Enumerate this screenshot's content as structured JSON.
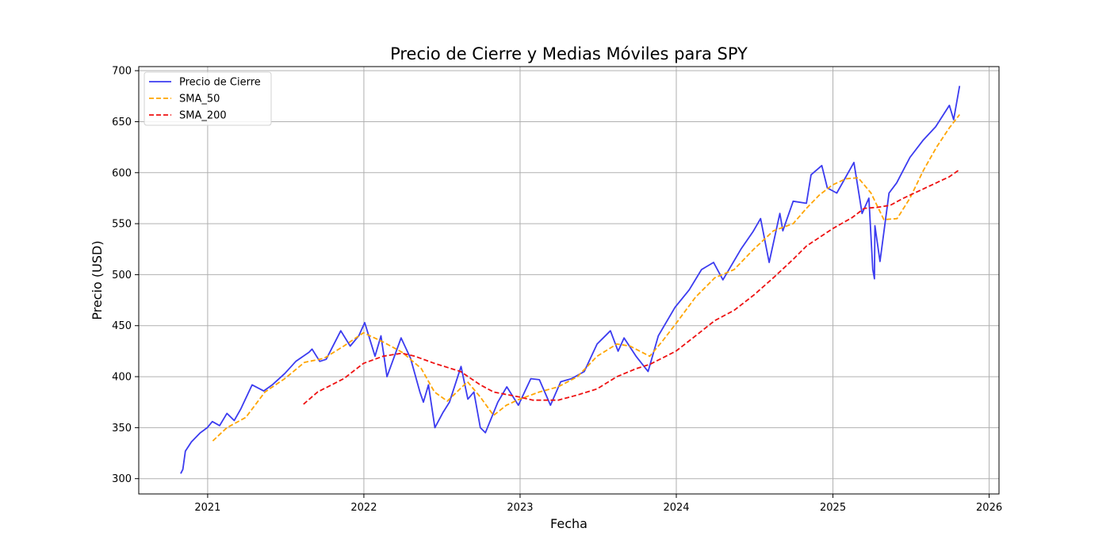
{
  "chart_data": {
    "type": "line",
    "title": "Precio de Cierre y Medias Móviles para SPY",
    "xlabel": "Fecha",
    "ylabel": "Precio (USD)",
    "xlim": [
      "2020-07-24",
      "2026-01-24"
    ],
    "ylim": [
      285,
      704
    ],
    "x_ticks": [
      {
        "date": "2021-01-01",
        "label": "2021"
      },
      {
        "date": "2022-01-01",
        "label": "2022"
      },
      {
        "date": "2023-01-01",
        "label": "2023"
      },
      {
        "date": "2024-01-01",
        "label": "2024"
      },
      {
        "date": "2025-01-01",
        "label": "2025"
      },
      {
        "date": "2026-01-01",
        "label": "2026"
      }
    ],
    "y_ticks": [
      300,
      350,
      400,
      450,
      500,
      550,
      600,
      650,
      700
    ],
    "grid": true,
    "legend_position": "upper-left",
    "series": [
      {
        "name": "Precio de Cierre",
        "color": "#3b3bf0",
        "style": "solid",
        "points": [
          [
            "2020-10-30",
            305
          ],
          [
            "2020-11-04",
            309
          ],
          [
            "2020-11-10",
            327
          ],
          [
            "2020-11-24",
            336
          ],
          [
            "2020-12-15",
            345
          ],
          [
            "2020-12-31",
            350
          ],
          [
            "2021-01-12",
            356
          ],
          [
            "2021-01-29",
            352
          ],
          [
            "2021-02-15",
            364
          ],
          [
            "2021-03-04",
            357
          ],
          [
            "2021-03-19",
            368
          ],
          [
            "2021-04-15",
            392
          ],
          [
            "2021-05-12",
            386
          ],
          [
            "2021-06-01",
            392
          ],
          [
            "2021-06-30",
            403
          ],
          [
            "2021-07-26",
            415
          ],
          [
            "2021-08-26",
            424
          ],
          [
            "2021-09-02",
            427
          ],
          [
            "2021-09-20",
            415
          ],
          [
            "2021-10-05",
            417
          ],
          [
            "2021-11-08",
            445
          ],
          [
            "2021-11-30",
            430
          ],
          [
            "2021-12-20",
            440
          ],
          [
            "2022-01-03",
            453
          ],
          [
            "2022-01-27",
            420
          ],
          [
            "2022-02-10",
            440
          ],
          [
            "2022-02-24",
            400
          ],
          [
            "2022-03-29",
            438
          ],
          [
            "2022-04-20",
            418
          ],
          [
            "2022-05-12",
            385
          ],
          [
            "2022-05-20",
            375
          ],
          [
            "2022-06-01",
            392
          ],
          [
            "2022-06-16",
            350
          ],
          [
            "2022-07-05",
            365
          ],
          [
            "2022-07-20",
            375
          ],
          [
            "2022-08-16",
            410
          ],
          [
            "2022-09-01",
            378
          ],
          [
            "2022-09-15",
            385
          ],
          [
            "2022-09-30",
            350
          ],
          [
            "2022-10-12",
            345
          ],
          [
            "2022-11-10",
            375
          ],
          [
            "2022-12-01",
            390
          ],
          [
            "2022-12-28",
            372
          ],
          [
            "2023-01-26",
            398
          ],
          [
            "2023-02-15",
            397
          ],
          [
            "2023-03-13",
            372
          ],
          [
            "2023-04-06",
            395
          ],
          [
            "2023-05-01",
            398
          ],
          [
            "2023-05-31",
            405
          ],
          [
            "2023-06-30",
            432
          ],
          [
            "2023-07-31",
            445
          ],
          [
            "2023-08-18",
            425
          ],
          [
            "2023-09-01",
            438
          ],
          [
            "2023-09-29",
            420
          ],
          [
            "2023-10-27",
            405
          ],
          [
            "2023-11-20",
            440
          ],
          [
            "2023-12-29",
            468
          ],
          [
            "2024-01-31",
            485
          ],
          [
            "2024-02-29",
            505
          ],
          [
            "2024-03-28",
            512
          ],
          [
            "2024-04-19",
            495
          ],
          [
            "2024-05-31",
            525
          ],
          [
            "2024-06-28",
            542
          ],
          [
            "2024-07-16",
            555
          ],
          [
            "2024-08-05",
            512
          ],
          [
            "2024-08-30",
            560
          ],
          [
            "2024-09-06",
            543
          ],
          [
            "2024-09-30",
            572
          ],
          [
            "2024-10-31",
            570
          ],
          [
            "2024-11-11",
            598
          ],
          [
            "2024-12-06",
            607
          ],
          [
            "2024-12-19",
            585
          ],
          [
            "2025-01-10",
            580
          ],
          [
            "2025-02-19",
            610
          ],
          [
            "2025-03-10",
            560
          ],
          [
            "2025-03-26",
            575
          ],
          [
            "2025-04-04",
            505
          ],
          [
            "2025-04-08",
            496
          ],
          [
            "2025-04-09",
            548
          ],
          [
            "2025-04-21",
            513
          ],
          [
            "2025-05-12",
            580
          ],
          [
            "2025-05-30",
            590
          ],
          [
            "2025-06-30",
            615
          ],
          [
            "2025-07-31",
            632
          ],
          [
            "2025-08-29",
            645
          ],
          [
            "2025-09-30",
            666
          ],
          [
            "2025-10-10",
            652
          ],
          [
            "2025-10-24",
            685
          ]
        ]
      },
      {
        "name": "SMA_50",
        "color": "#ffa500",
        "style": "dashed",
        "points": [
          [
            "2021-01-13",
            337
          ],
          [
            "2021-02-15",
            350
          ],
          [
            "2021-03-31",
            360
          ],
          [
            "2021-05-15",
            385
          ],
          [
            "2021-06-30",
            398
          ],
          [
            "2021-08-15",
            414
          ],
          [
            "2021-09-30",
            418
          ],
          [
            "2021-11-15",
            430
          ],
          [
            "2021-12-31",
            443
          ],
          [
            "2022-02-15",
            434
          ],
          [
            "2022-03-31",
            424
          ],
          [
            "2022-05-15",
            408
          ],
          [
            "2022-06-15",
            385
          ],
          [
            "2022-07-15",
            376
          ],
          [
            "2022-08-31",
            395
          ],
          [
            "2022-09-30",
            380
          ],
          [
            "2022-10-31",
            362
          ],
          [
            "2022-11-30",
            372
          ],
          [
            "2022-12-31",
            378
          ],
          [
            "2023-02-15",
            385
          ],
          [
            "2023-03-31",
            390
          ],
          [
            "2023-05-15",
            400
          ],
          [
            "2023-06-30",
            420
          ],
          [
            "2023-08-15",
            432
          ],
          [
            "2023-09-15",
            430
          ],
          [
            "2023-10-31",
            420
          ],
          [
            "2023-11-30",
            435
          ],
          [
            "2023-12-31",
            452
          ],
          [
            "2024-02-15",
            478
          ],
          [
            "2024-03-31",
            497
          ],
          [
            "2024-05-15",
            505
          ],
          [
            "2024-06-30",
            525
          ],
          [
            "2024-08-15",
            543
          ],
          [
            "2024-09-30",
            550
          ],
          [
            "2024-10-31",
            565
          ],
          [
            "2024-11-30",
            578
          ],
          [
            "2024-12-31",
            588
          ],
          [
            "2025-01-31",
            594
          ],
          [
            "2025-03-01",
            595
          ],
          [
            "2025-03-31",
            580
          ],
          [
            "2025-04-30",
            554
          ],
          [
            "2025-05-31",
            555
          ],
          [
            "2025-06-30",
            575
          ],
          [
            "2025-07-31",
            602
          ],
          [
            "2025-08-31",
            625
          ],
          [
            "2025-09-30",
            644
          ],
          [
            "2025-10-24",
            657
          ]
        ]
      },
      {
        "name": "SMA_200",
        "color": "#ee1111",
        "style": "dashed",
        "points": [
          [
            "2021-08-13",
            373
          ],
          [
            "2021-09-15",
            385
          ],
          [
            "2021-11-15",
            398
          ],
          [
            "2021-12-31",
            413
          ],
          [
            "2022-02-15",
            420
          ],
          [
            "2022-03-31",
            423
          ],
          [
            "2022-04-30",
            420
          ],
          [
            "2022-06-15",
            413
          ],
          [
            "2022-08-15",
            405
          ],
          [
            "2022-09-30",
            392
          ],
          [
            "2022-10-31",
            385
          ],
          [
            "2022-12-31",
            380
          ],
          [
            "2023-01-31",
            377
          ],
          [
            "2023-03-31",
            377
          ],
          [
            "2023-05-15",
            382
          ],
          [
            "2023-06-30",
            388
          ],
          [
            "2023-08-15",
            400
          ],
          [
            "2023-09-30",
            408
          ],
          [
            "2023-10-31",
            412
          ],
          [
            "2023-12-31",
            425
          ],
          [
            "2024-02-15",
            440
          ],
          [
            "2024-03-31",
            455
          ],
          [
            "2024-05-15",
            465
          ],
          [
            "2024-06-30",
            480
          ],
          [
            "2024-08-15",
            497
          ],
          [
            "2024-09-30",
            515
          ],
          [
            "2024-10-31",
            528
          ],
          [
            "2024-12-31",
            545
          ],
          [
            "2025-02-15",
            556
          ],
          [
            "2025-03-15",
            565
          ],
          [
            "2025-04-15",
            566
          ],
          [
            "2025-05-15",
            568
          ],
          [
            "2025-06-15",
            575
          ],
          [
            "2025-08-15",
            587
          ],
          [
            "2025-09-30",
            596
          ],
          [
            "2025-10-24",
            603
          ]
        ]
      }
    ]
  }
}
